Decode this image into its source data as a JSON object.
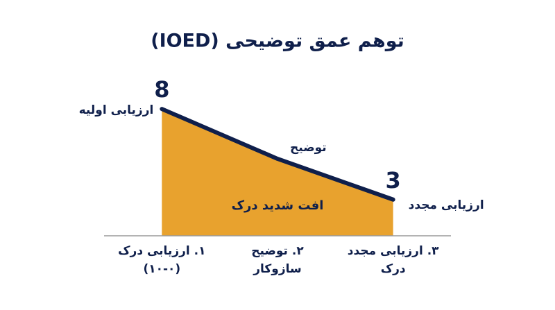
{
  "chart_data": {
    "type": "area",
    "title": "توهم عمق توضیحی (IOED)",
    "categories": [
      [
        "۱. ارزیابی درک",
        "(۱۰-۰)"
      ],
      [
        "۲. توضیح",
        "سازوکار"
      ],
      [
        "۳. ارزیابی مجدد",
        "درک"
      ]
    ],
    "values": [
      8,
      5.25,
      3
    ],
    "value_labels": [
      "8",
      null,
      "3"
    ],
    "point_labels": [
      "ارزیابی اولیه",
      "توضیح",
      "ارزیابی مجدد"
    ],
    "annotation": "افت شدید درک",
    "color": "#e8a22e",
    "line_color": "#0f1f4b",
    "ylim": [
      1,
      9
    ]
  }
}
